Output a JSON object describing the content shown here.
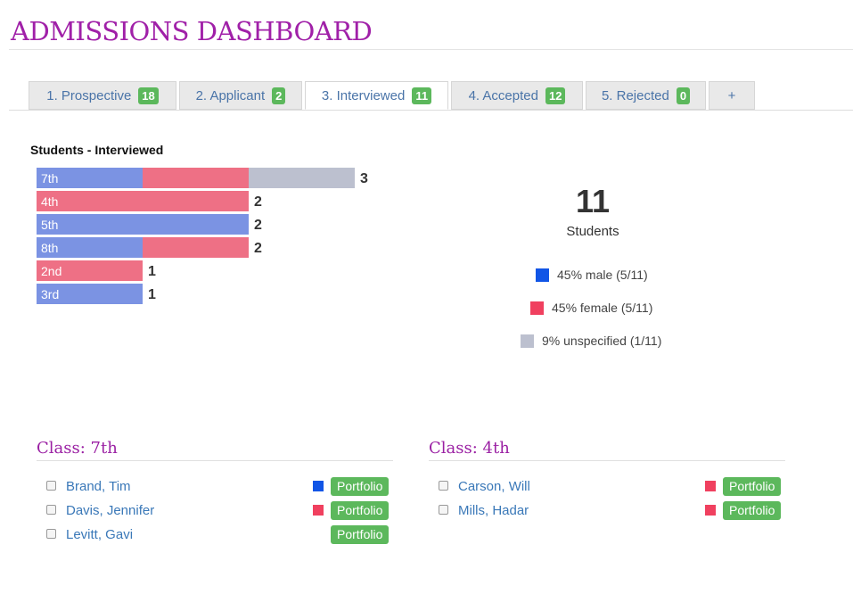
{
  "page_title": "ADMISSIONS DASHBOARD",
  "tabs": [
    {
      "label": "1. Prospective",
      "count": "18",
      "active": false
    },
    {
      "label": "2. Applicant",
      "count": "2",
      "active": false
    },
    {
      "label": "3. Interviewed",
      "count": "11",
      "active": true
    },
    {
      "label": "4. Accepted",
      "count": "12",
      "active": false
    },
    {
      "label": "5. Rejected",
      "count": "0",
      "active": false
    }
  ],
  "add_tab_label": "+",
  "colors": {
    "male": "#7b93e3",
    "female": "#ee7085",
    "unspecified": "#bcc0cf",
    "male_swatch": "#1155e6",
    "female_swatch": "#f0405f",
    "unspecified_swatch": "#bcc0cf",
    "accent": "#a020a8",
    "badge": "#5cb85c"
  },
  "chart_data": {
    "type": "bar",
    "title": "Students - Interviewed",
    "orientation": "horizontal",
    "stacked": true,
    "categories": [
      "7th",
      "4th",
      "5th",
      "8th",
      "2nd",
      "3rd"
    ],
    "totals": [
      3,
      2,
      2,
      2,
      1,
      1
    ],
    "series": [
      {
        "key": "male",
        "values": [
          1,
          0,
          2,
          1,
          0,
          1
        ]
      },
      {
        "key": "female",
        "values": [
          1,
          2,
          0,
          1,
          1,
          0
        ]
      },
      {
        "key": "unspecified",
        "values": [
          1,
          0,
          0,
          0,
          0,
          0
        ]
      }
    ],
    "grid": false
  },
  "summary": {
    "total": "11",
    "total_label": "Students",
    "legend": [
      {
        "key": "male",
        "label": "45% male (5/11)"
      },
      {
        "key": "female",
        "label": "45% female (5/11)"
      },
      {
        "key": "unspecified",
        "label": "9% unspecified (1/11)"
      }
    ]
  },
  "portfolio_label": "Portfolio",
  "classes": [
    {
      "heading": "Class: 7th",
      "students": [
        {
          "name": "Brand, Tim",
          "gender": "male"
        },
        {
          "name": "Davis, Jennifer",
          "gender": "female"
        },
        {
          "name": "Levitt, Gavi",
          "gender": "unspecified"
        }
      ]
    },
    {
      "heading": "Class: 4th",
      "students": [
        {
          "name": "Carson, Will",
          "gender": "female"
        },
        {
          "name": "Mills, Hadar",
          "gender": "female"
        }
      ]
    }
  ]
}
